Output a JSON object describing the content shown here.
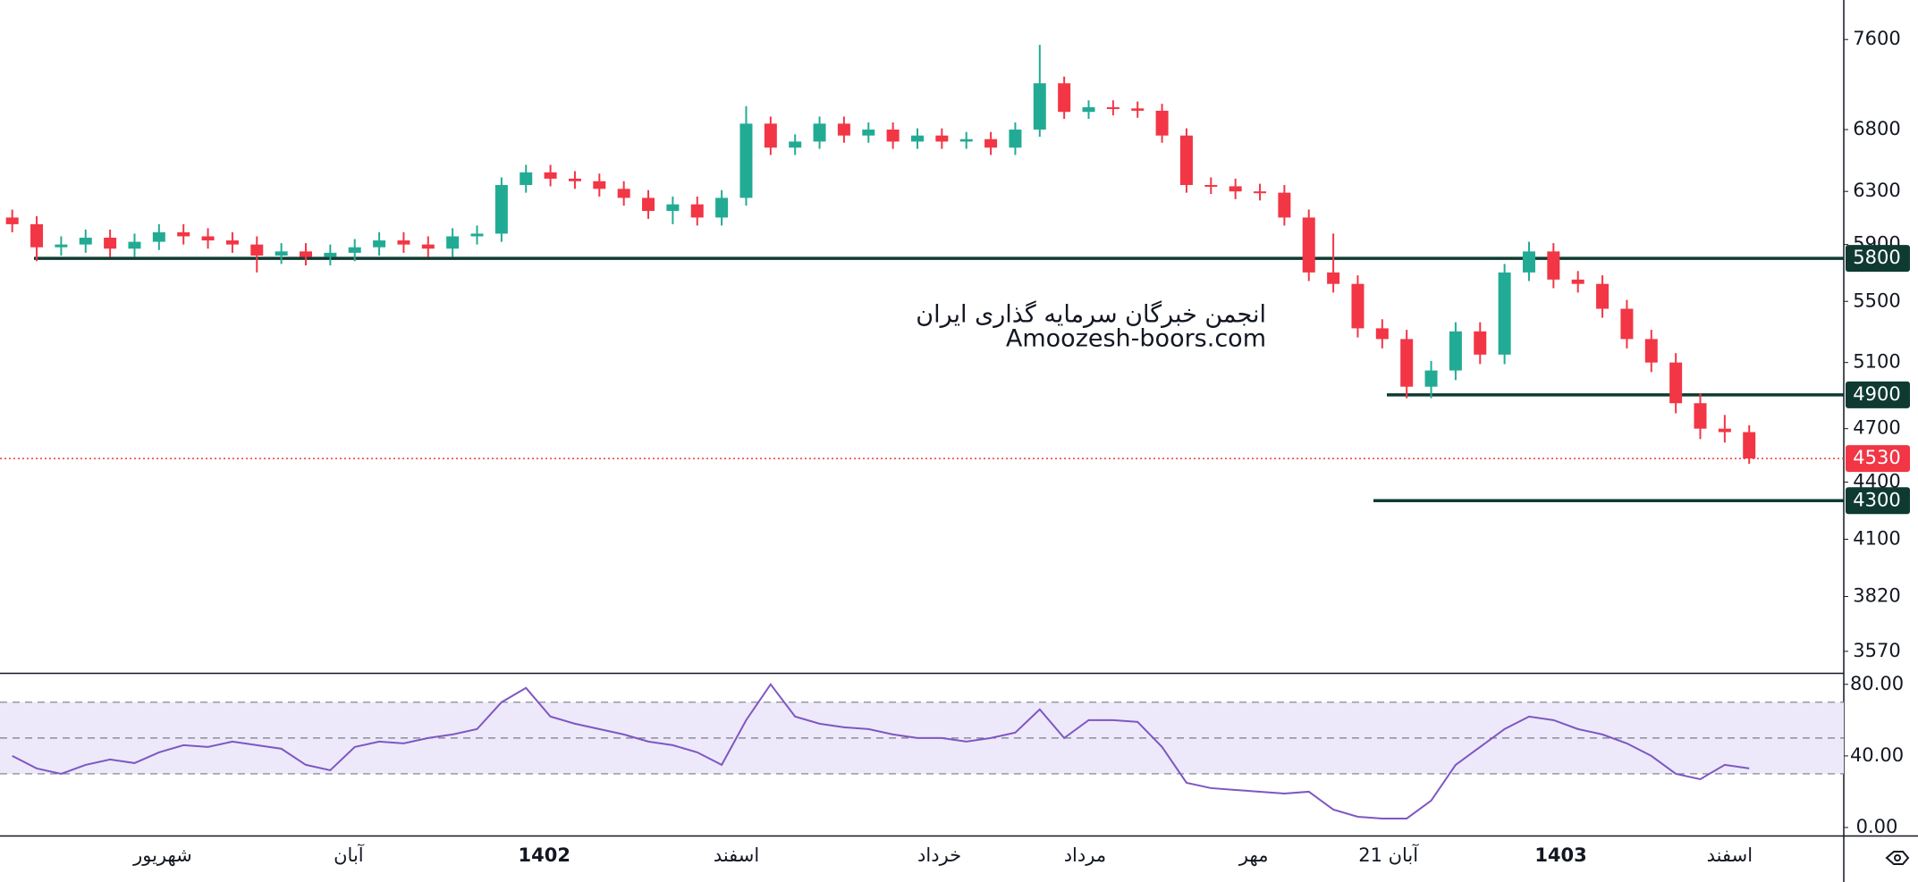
{
  "chart_data": [
    {
      "type": "candlestick",
      "log_scale": true,
      "ylim": [
        3480,
        7980
      ],
      "yticks": [
        7600,
        6800,
        6300,
        5900,
        5500,
        5100,
        4700,
        4400,
        4100,
        3820,
        3570
      ],
      "up_color": "#22ab94",
      "down_color": "#f23645",
      "open": [
        6100,
        6050,
        5880,
        5900,
        5950,
        5870,
        5920,
        5990,
        5960,
        5930,
        5900,
        5820,
        5850,
        5810,
        5840,
        5880,
        5930,
        5900,
        5870,
        5960,
        5980,
        6350,
        6450,
        6400,
        6380,
        6320,
        6250,
        6150,
        6200,
        6100,
        6250,
        6850,
        6650,
        6700,
        6850,
        6750,
        6800,
        6700,
        6750,
        6700,
        6720,
        6650,
        6800,
        7200,
        6950,
        6990,
        6980,
        6960,
        6750,
        6350,
        6340,
        6300,
        6290,
        6100,
        5700,
        5620,
        5320,
        5250,
        4950,
        5050,
        5300,
        5150,
        5700,
        5850,
        5650,
        5620,
        5450,
        5250,
        5100,
        4850,
        4700,
        4680
      ],
      "high": [
        6160,
        6110,
        5960,
        6010,
        6010,
        5980,
        6050,
        6050,
        6020,
        5990,
        5960,
        5910,
        5910,
        5900,
        5940,
        5990,
        5990,
        5960,
        6020,
        6040,
        6410,
        6510,
        6510,
        6460,
        6440,
        6380,
        6310,
        6260,
        6260,
        6310,
        7000,
        6910,
        6760,
        6910,
        6910,
        6860,
        6860,
        6810,
        6810,
        6780,
        6780,
        6860,
        7550,
        7260,
        7050,
        7050,
        7040,
        7020,
        6810,
        6410,
        6400,
        6360,
        6350,
        6160,
        5980,
        5680,
        5380,
        5310,
        5110,
        5360,
        5360,
        5760,
        5920,
        5910,
        5710,
        5680,
        5510,
        5310,
        5160,
        4910,
        4780,
        4720
      ],
      "low": [
        5990,
        5780,
        5820,
        5840,
        5810,
        5810,
        5860,
        5900,
        5870,
        5840,
        5700,
        5760,
        5750,
        5750,
        5780,
        5820,
        5840,
        5810,
        5810,
        5900,
        5920,
        6290,
        6340,
        6320,
        6260,
        6190,
        6090,
        6050,
        6040,
        6040,
        6190,
        6590,
        6590,
        6640,
        6690,
        6690,
        6640,
        6640,
        6640,
        6640,
        6590,
        6590,
        6740,
        6890,
        6890,
        6920,
        6900,
        6690,
        6290,
        6280,
        6240,
        6230,
        6040,
        5640,
        5560,
        5260,
        5190,
        4880,
        4880,
        4990,
        5090,
        5090,
        5640,
        5590,
        5560,
        5390,
        5190,
        5040,
        4790,
        4640,
        4620,
        4500
      ],
      "close": [
        6050,
        5880,
        5900,
        5950,
        5870,
        5920,
        5990,
        5960,
        5930,
        5900,
        5820,
        5850,
        5810,
        5840,
        5880,
        5930,
        5900,
        5870,
        5960,
        5980,
        6350,
        6450,
        6400,
        6380,
        6320,
        6250,
        6150,
        6200,
        6100,
        6250,
        6850,
        6650,
        6700,
        6850,
        6750,
        6800,
        6700,
        6750,
        6700,
        6720,
        6650,
        6800,
        7200,
        6950,
        6990,
        6980,
        6960,
        6750,
        6350,
        6340,
        6300,
        6290,
        6100,
        5700,
        5620,
        5320,
        5250,
        4950,
        5050,
        5300,
        5150,
        5700,
        5850,
        5650,
        5620,
        5450,
        5250,
        5100,
        4850,
        4700,
        4680,
        4530
      ],
      "levels": [
        5800,
        4900,
        4300
      ],
      "level_color": "#0f3a31",
      "last_price": 4530,
      "x_labels": [
        "شهریور",
        "آبان",
        "1402",
        "اسفند",
        "خرداد",
        "مرداد",
        "مهر",
        "21 آبان",
        "1403",
        "اسفند"
      ],
      "annotations": [
        "انجمن خبرگان سرمایه گذاری ایران",
        "Amoozesh-boors.com"
      ]
    },
    {
      "type": "line",
      "ylim": [
        -4,
        85.4
      ],
      "yticks": [
        {
          "value": 80,
          "label": "80.00"
        },
        {
          "value": 40,
          "label": "40.00"
        },
        {
          "value": 0,
          "label": "0.00"
        }
      ],
      "bands": [
        70,
        50,
        30
      ],
      "color": "#7e57c2",
      "values": [
        40,
        33,
        30,
        35,
        38,
        36,
        42,
        46,
        45,
        48,
        46,
        44,
        35,
        32,
        45,
        48,
        47,
        50,
        52,
        55,
        70,
        78,
        62,
        58,
        55,
        52,
        48,
        46,
        42,
        35,
        60,
        80,
        62,
        58,
        56,
        55,
        52,
        50,
        50,
        48,
        50,
        53,
        66,
        50,
        60,
        60,
        59,
        45,
        25,
        22,
        21,
        20,
        19,
        20,
        10,
        6,
        5,
        5,
        15,
        35,
        45,
        55,
        62,
        60,
        55,
        52,
        47,
        40,
        30,
        27,
        35,
        33
      ]
    }
  ]
}
